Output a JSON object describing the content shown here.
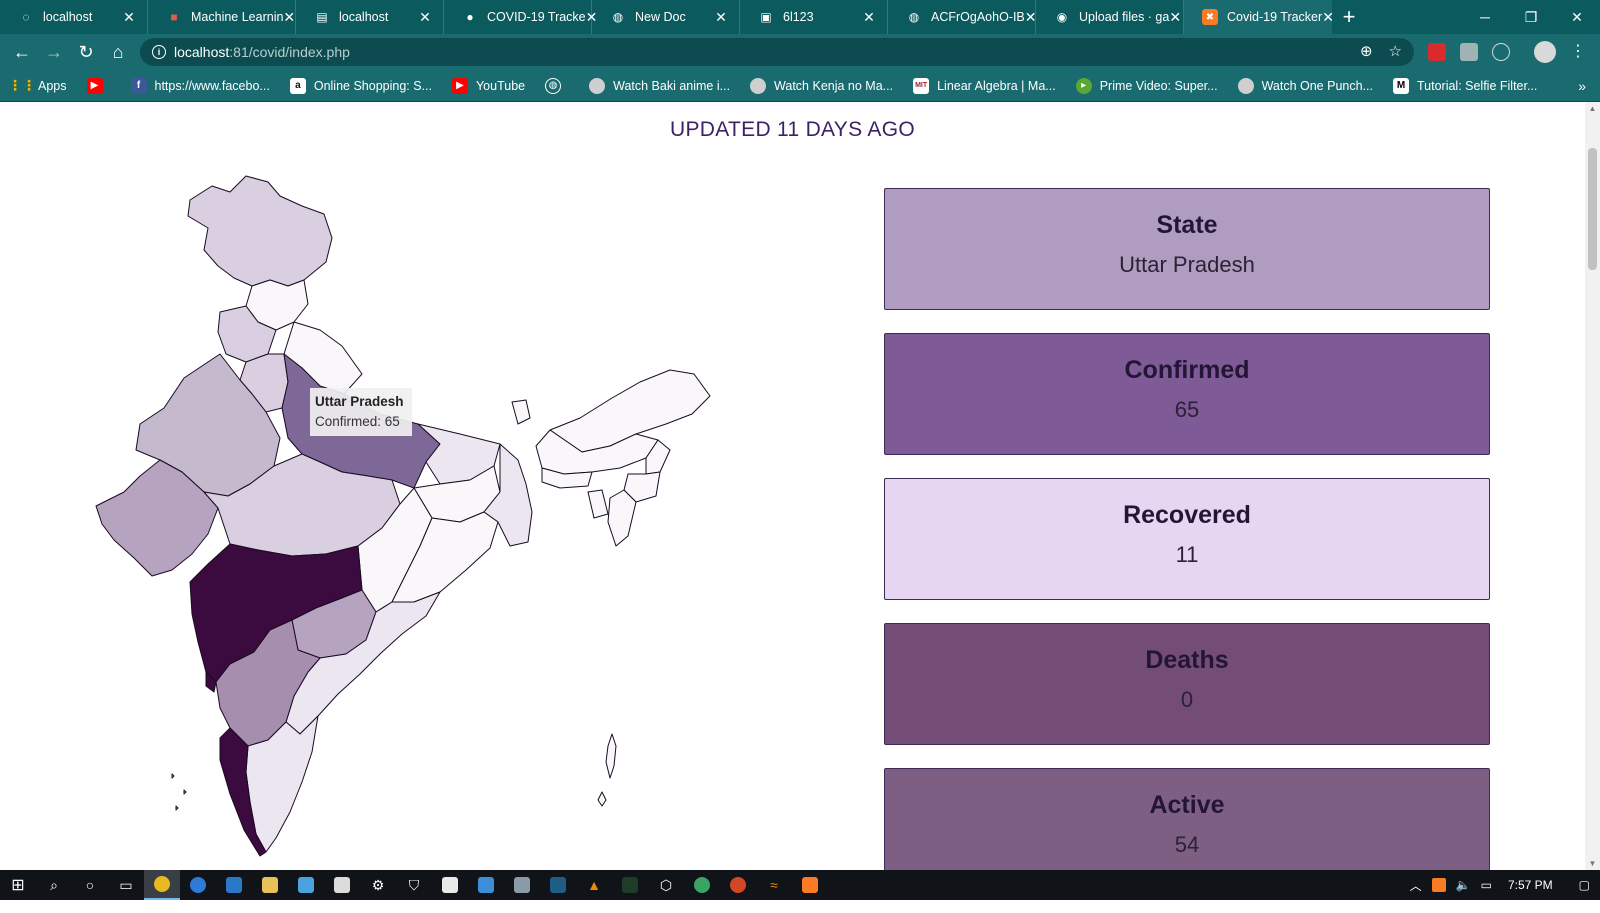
{
  "tabs": [
    {
      "title": "localhost",
      "icon": "loading-icon"
    },
    {
      "title": "Machine Learnin",
      "icon": "cube-icon"
    },
    {
      "title": "localhost",
      "icon": "document-icon"
    },
    {
      "title": "COVID-19 Tracke",
      "icon": "dot-icon"
    },
    {
      "title": "New Doc",
      "icon": "globe-icon"
    },
    {
      "title": "6l123",
      "icon": "contact-icon"
    },
    {
      "title": "ACFrOgAohO-IB",
      "icon": "globe-icon"
    },
    {
      "title": "Upload files · ga",
      "icon": "github-icon"
    },
    {
      "title": "Covid-19 Tracker",
      "icon": "xampp-icon",
      "active": true
    }
  ],
  "address": {
    "host": "localhost",
    "path": ":81/covid/index.php"
  },
  "bookmarks": [
    {
      "label": "Apps",
      "icon": "apps-grid-icon",
      "color": "#f4b400"
    },
    {
      "label": "",
      "icon": "youtube-icon",
      "color": "#ff0000"
    },
    {
      "label": "https://www.facebo...",
      "icon": "facebook-icon",
      "color": "#3b5998"
    },
    {
      "label": "Online Shopping: S...",
      "icon": "amazon-icon",
      "color": "#ffffff"
    },
    {
      "label": "YouTube",
      "icon": "youtube-icon",
      "color": "#ff0000"
    },
    {
      "label": "",
      "icon": "globe-icon",
      "color": "#ffffff"
    },
    {
      "label": "Watch Baki anime i...",
      "icon": "anime-icon",
      "color": "#cccccc"
    },
    {
      "label": "Watch Kenja no Ma...",
      "icon": "anime-icon",
      "color": "#cccccc"
    },
    {
      "label": "Linear Algebra | Ma...",
      "icon": "mit-icon",
      "color": "#a31f34"
    },
    {
      "label": "Prime Video: Super...",
      "icon": "prime-video-icon",
      "color": "#5aa832"
    },
    {
      "label": "Watch One Punch...",
      "icon": "anime-icon",
      "color": "#cccccc"
    },
    {
      "label": "Tutorial: Selfie Filter...",
      "icon": "medium-icon",
      "color": "#ffffff"
    }
  ],
  "page": {
    "updated": "UPDATED 11 DAYS AGO",
    "tooltip": {
      "state": "Uttar Pradesh",
      "line": "Confirmed: 65"
    },
    "cards": [
      {
        "label": "State",
        "value": "Uttar Pradesh",
        "color": "#b09cc0"
      },
      {
        "label": "Confirmed",
        "value": "65",
        "color": "#7e5a97"
      },
      {
        "label": "Recovered",
        "value": "11",
        "color": "#e6d6f1"
      },
      {
        "label": "Deaths",
        "value": "0",
        "color": "#744d76"
      },
      {
        "label": "Active",
        "value": "54",
        "color": "#7d5f83"
      }
    ]
  },
  "taskbar": {
    "time": "7:57 PM"
  },
  "colors": {
    "darkest": "#3b0a3f",
    "dark": "#7d6898",
    "mid": "#b5a3c0",
    "light": "#d9cfe0",
    "lighter": "#ece6f0",
    "lightest": "#f9f7fa",
    "border": "#1a0a22"
  }
}
